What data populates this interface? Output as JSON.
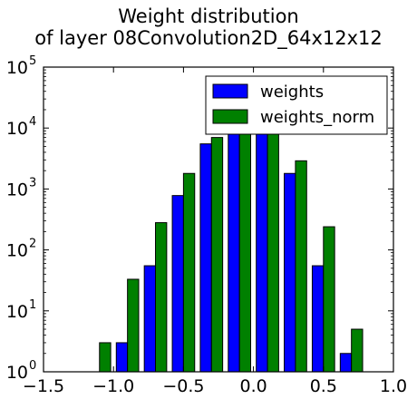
{
  "chart_data": {
    "type": "bar",
    "title_line1": "Weight distribution",
    "title_line2": "of layer 08Convolution2D_64x12x12",
    "xlabel": "",
    "ylabel": "",
    "xlim": [
      -1.5,
      1.0
    ],
    "ylim": [
      1,
      100000
    ],
    "yscale": "log",
    "grid": false,
    "legend_position": "top-right",
    "x_ticks": [
      -1.5,
      -1.0,
      -0.5,
      0.0,
      0.5,
      1.0
    ],
    "x_tick_labels": [
      "−1.5",
      "−1.0",
      "−0.5",
      "0.0",
      "0.5",
      "1.0"
    ],
    "y_ticks": [
      {
        "value": 1,
        "base": "10",
        "exp": "0"
      },
      {
        "value": 10,
        "base": "10",
        "exp": "1"
      },
      {
        "value": 100,
        "base": "10",
        "exp": "2"
      },
      {
        "value": 1000,
        "base": "10",
        "exp": "3"
      },
      {
        "value": 10000,
        "base": "10",
        "exp": "4"
      },
      {
        "value": 100000,
        "base": "10",
        "exp": "5"
      }
    ],
    "bin_edges": [
      -1.2,
      -1.0,
      -0.8,
      -0.6,
      -0.4,
      -0.2,
      0.0,
      0.2,
      0.4,
      0.6,
      0.8
    ],
    "series": [
      {
        "name": "weights",
        "color": "#0000ff",
        "values": [
          1,
          3,
          55,
          780,
          5500,
          25000,
          20000,
          1800,
          55,
          2
        ]
      },
      {
        "name": "weights_norm",
        "color": "#008000",
        "values": [
          3,
          33,
          280,
          1800,
          7000,
          20000,
          9000,
          2900,
          240,
          5
        ]
      }
    ]
  }
}
